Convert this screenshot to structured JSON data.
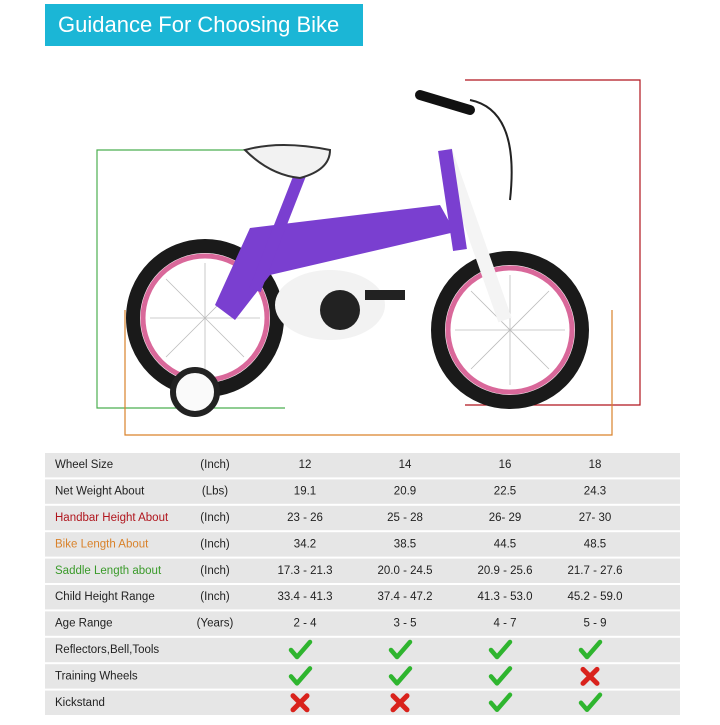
{
  "header": {
    "title": "Guidance For Choosing Bike"
  },
  "table": {
    "rows": [
      {
        "label": "Wheel Size",
        "unit": "(Inch)",
        "values": [
          "12",
          "14",
          "16",
          "18"
        ]
      },
      {
        "label": "Net Weight About",
        "unit": "(Lbs)",
        "values": [
          "19.1",
          "20.9",
          "22.5",
          "24.3"
        ]
      },
      {
        "label": "Handbar Height About",
        "unit": "(Inch)",
        "values": [
          "23 - 26",
          "25 - 28",
          "26- 29",
          "27- 30"
        ],
        "color": "#b0151d"
      },
      {
        "label": "Bike Length About",
        "unit": "(Inch)",
        "values": [
          "34.2",
          "38.5",
          "44.5",
          "48.5"
        ],
        "color": "#d9822b"
      },
      {
        "label": "Saddle Length about",
        "unit": "(Inch)",
        "values": [
          "17.3 - 21.3",
          "20.0 - 24.5",
          "20.9 - 25.6",
          "21.7 - 27.6"
        ],
        "color": "#3a9a2a"
      },
      {
        "label": "Child Height Range",
        "unit": "(Inch)",
        "values": [
          "33.4 - 41.3",
          "37.4 - 47.2",
          "41.3 - 53.0",
          "45.2 - 59.0"
        ]
      },
      {
        "label": "Age Range",
        "unit": "(Years)",
        "values": [
          "2 - 4",
          "3 - 5",
          "4 - 7",
          "5 - 9"
        ]
      },
      {
        "label": "Reflectors,Bell,Tools",
        "included": [
          true,
          true,
          true,
          true
        ]
      },
      {
        "label": "Training Wheels",
        "included": [
          true,
          true,
          true,
          false
        ]
      },
      {
        "label": "Kickstand",
        "included": [
          false,
          false,
          true,
          true
        ]
      }
    ]
  }
}
